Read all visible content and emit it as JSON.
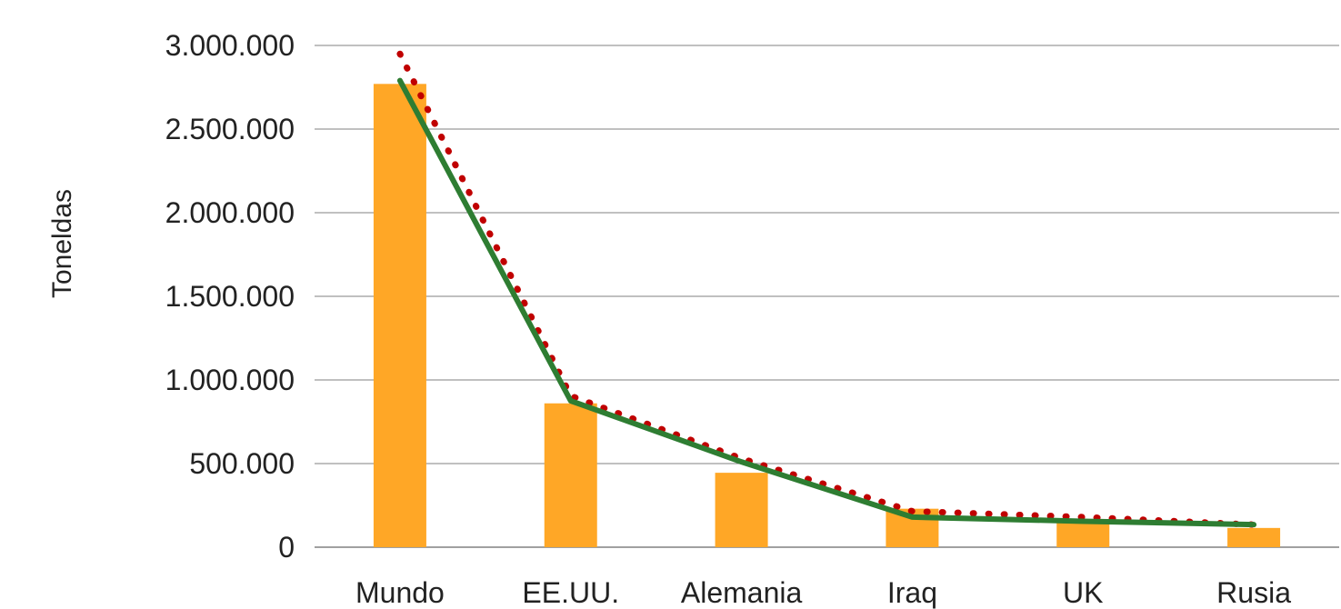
{
  "chart_data": {
    "type": "bar",
    "title": "",
    "xlabel": "",
    "ylabel": "Toneldas",
    "categories": [
      "Mundo",
      "EE.UU.",
      "Alemania",
      "Iraq",
      "UK",
      "Rusia"
    ],
    "ylim": [
      0,
      3000000
    ],
    "yticks": [
      0,
      500000,
      1000000,
      1500000,
      2000000,
      2500000,
      3000000
    ],
    "ytick_labels": [
      "0",
      "500.000",
      "1.000.000",
      "1.500.000",
      "2.000.000",
      "2.500.000",
      "3.000.000"
    ],
    "grid": true,
    "legend": "none",
    "series": [
      {
        "kind": "bar",
        "color": "#FFA726",
        "values": [
          2770000,
          860000,
          445000,
          230000,
          160000,
          115000
        ]
      },
      {
        "kind": "line",
        "style": "solid",
        "color": "#2E7D32",
        "values": [
          2790000,
          875000,
          510000,
          180000,
          155000,
          135000
        ]
      },
      {
        "kind": "trendline",
        "style": "dotted",
        "color": "#C00000",
        "values": [
          2950000,
          905000,
          530000,
          215000,
          180000,
          135000
        ]
      }
    ]
  }
}
